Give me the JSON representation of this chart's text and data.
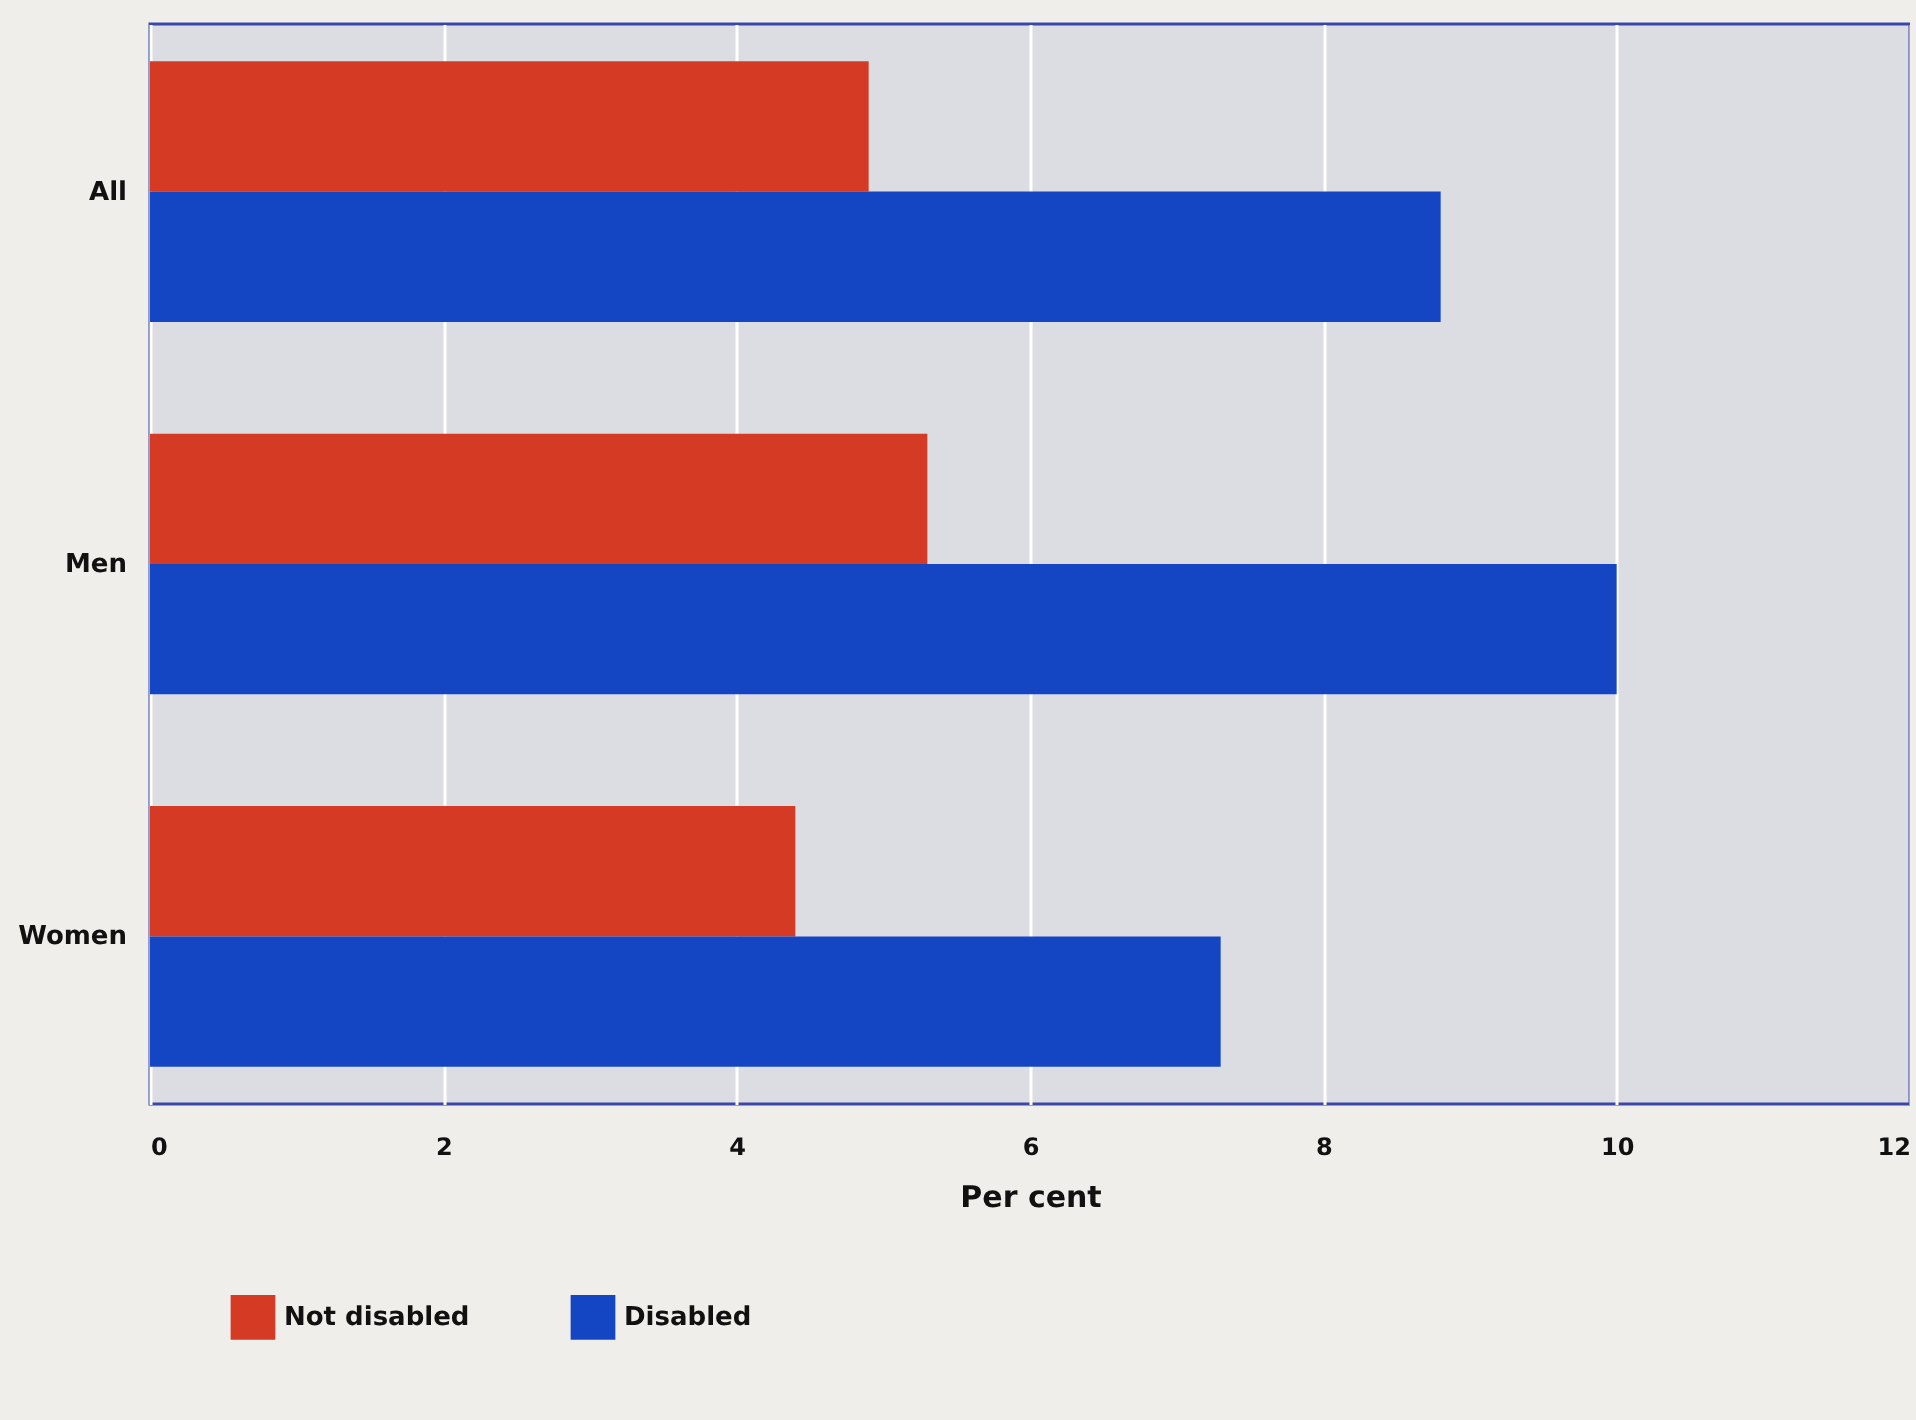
{
  "chart_data": {
    "type": "bar",
    "orientation": "horizontal",
    "xlabel": "Per cent",
    "categories": [
      "All",
      "Men",
      "Women"
    ],
    "series": [
      {
        "name": "Not disabled",
        "color": "#d43a24",
        "values": [
          4.9,
          5.3,
          4.4
        ]
      },
      {
        "name": "Disabled",
        "color": "#1446c4",
        "values": [
          8.8,
          10.0,
          7.3
        ]
      }
    ],
    "xlim": [
      0,
      12
    ],
    "xticks": [
      0,
      2,
      4,
      6,
      8,
      10,
      12
    ],
    "grid": "x",
    "legend": "bottom left"
  }
}
